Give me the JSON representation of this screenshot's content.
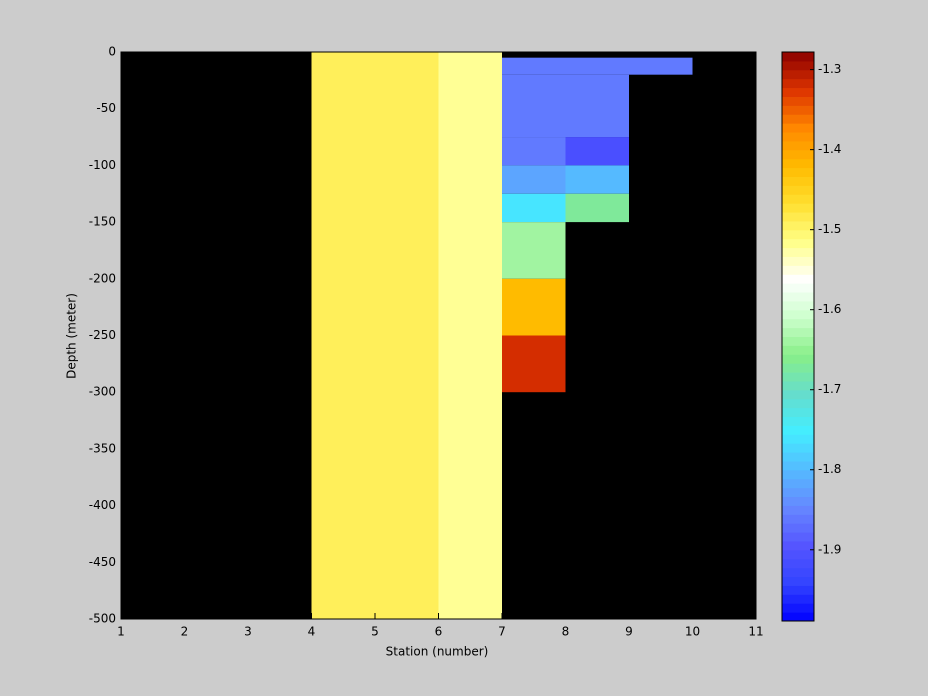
{
  "chart_data": {
    "type": "heatmap",
    "xlabel": "Station (number)",
    "ylabel": "Depth (meter)",
    "xlim": [
      1,
      11
    ],
    "xticks": [
      1,
      2,
      3,
      4,
      5,
      6,
      7,
      8,
      9,
      10,
      11
    ],
    "ylim": [
      -500,
      0
    ],
    "yticks": [
      0,
      -50,
      -100,
      -150,
      -200,
      -250,
      -300,
      -350,
      -400,
      -450,
      -500
    ],
    "background": "#000000",
    "clim": [
      -1.989,
      -1.278
    ],
    "cticks": [
      -1.3,
      -1.4,
      -1.5,
      -1.6,
      -1.7,
      -1.8,
      -1.9
    ],
    "colormap": [
      "#0000ff",
      "#3344ff",
      "#5555ff",
      "#6688ff",
      "#55bbff",
      "#44eeff",
      "#66ddcc",
      "#88ee88",
      "#ccffcc",
      "#ffffff",
      "#ffff88",
      "#ffe030",
      "#ffbb00",
      "#ff8800",
      "#dd3300",
      "#8b0000"
    ],
    "cells": [
      {
        "x": [
          4,
          6
        ],
        "y": [
          0,
          -500
        ],
        "value": -1.49
      },
      {
        "x": [
          6,
          7
        ],
        "y": [
          0,
          -500
        ],
        "value": -1.52
      },
      {
        "x": [
          7,
          10
        ],
        "y": [
          -5,
          -20
        ],
        "value": -1.86
      },
      {
        "x": [
          7,
          9
        ],
        "y": [
          -20,
          -75
        ],
        "value": -1.86
      },
      {
        "x": [
          7,
          8
        ],
        "y": [
          -75,
          -100
        ],
        "value": -1.86
      },
      {
        "x": [
          8,
          9
        ],
        "y": [
          -75,
          -100
        ],
        "value": -1.91
      },
      {
        "x": [
          7,
          8
        ],
        "y": [
          -100,
          -125
        ],
        "value": -1.82
      },
      {
        "x": [
          8,
          9
        ],
        "y": [
          -100,
          -125
        ],
        "value": -1.8
      },
      {
        "x": [
          7,
          8
        ],
        "y": [
          -125,
          -150
        ],
        "value": -1.76
      },
      {
        "x": [
          8,
          9
        ],
        "y": [
          -125,
          -150
        ],
        "value": -1.67
      },
      {
        "x": [
          7,
          8
        ],
        "y": [
          -150,
          -200
        ],
        "value": -1.64
      },
      {
        "x": [
          7,
          8
        ],
        "y": [
          -200,
          -250
        ],
        "value": -1.42
      },
      {
        "x": [
          7,
          8
        ],
        "y": [
          -250,
          -300
        ],
        "value": -1.32
      }
    ]
  }
}
